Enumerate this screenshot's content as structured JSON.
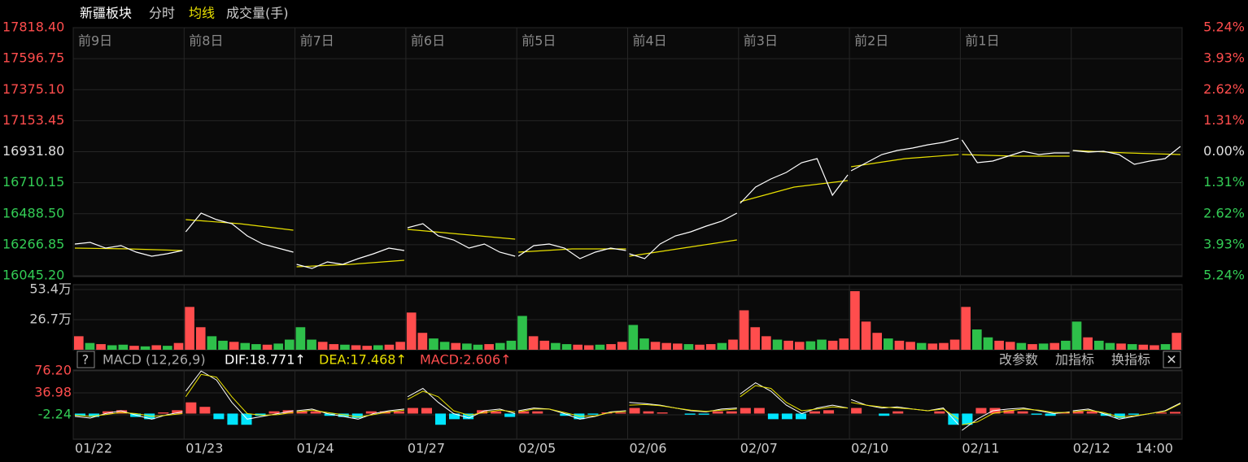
{
  "header": {
    "title": "新疆板块",
    "tabs": [
      "分时",
      "均线",
      "成交量(手)"
    ]
  },
  "price_panel": {
    "ylim": [
      16045.2,
      17818.4
    ],
    "yticks": [
      {
        "value": 17818.4,
        "label": "17818.40"
      },
      17596.75,
      {
        "value": 17375.1,
        "label": "17375.10"
      },
      17153.45,
      {
        "value": 16931.8,
        "label": "16931.80"
      },
      16710.15,
      {
        "value": 16488.5,
        "label": "16488.50"
      },
      16266.85,
      {
        "value": 16045.2,
        "label": "16045.20"
      }
    ],
    "pct_ticks": [
      "5.24%",
      "3.93%",
      "2.62%",
      "1.31%",
      "0.00%",
      "1.31%",
      "2.62%",
      "3.93%",
      "5.24%"
    ],
    "colors": {
      "price": "#ffffff",
      "avg": "#e8e000",
      "up": "#ff4d4d",
      "flat": "#e0e0e0",
      "down": "#33cc55"
    },
    "days": [
      {
        "label": "前9日",
        "price": [
          16271.9,
          16283.5,
          16243.0,
          16260.4,
          16213.8,
          16184.7,
          16202.2,
          16225.4
        ],
        "avg": [
          16242.8,
          16237.0,
          16225.4
        ]
      },
      {
        "label": "前8日",
        "price": [
          16359.1,
          16492.9,
          16446.3,
          16417.2,
          16330.0,
          16271.9,
          16242.8,
          16213.8
        ],
        "avg": [
          16446.3,
          16417.2,
          16370.7
        ]
      },
      {
        "label": "前7日",
        "price": [
          16126.6,
          16097.5,
          16144.0,
          16126.6,
          16167.3,
          16202.2,
          16242.8,
          16225.4
        ],
        "avg": [
          16109.1,
          16126.6,
          16155.6
        ]
      },
      {
        "label": "前6日",
        "price": [
          16388.2,
          16417.2,
          16330.0,
          16301.0,
          16242.8,
          16271.9,
          16213.8,
          16184.7
        ],
        "avg": [
          16376.6,
          16341.6,
          16306.8
        ]
      },
      {
        "label": "前5日",
        "price": [
          16184.7,
          16260.4,
          16271.9,
          16242.8,
          16167.3,
          16213.8,
          16242.8,
          16225.4
        ],
        "avg": [
          16213.8,
          16237.0,
          16237.0
        ]
      },
      {
        "label": "前4日",
        "price": [
          16202.2,
          16167.3,
          16271.9,
          16330.0,
          16359.1,
          16399.8,
          16434.7,
          16492.9
        ],
        "avg": [
          16184.7,
          16242.8,
          16301.0
        ]
      },
      {
        "label": "前3日",
        "price": [
          16562.6,
          16678.9,
          16737.0,
          16783.5,
          16853.3,
          16882.3,
          16620.7,
          16766.0
        ],
        "avg": [
          16574.2,
          16678.9,
          16725.3
        ]
      },
      {
        "label": "前2日",
        "price": [
          16795.1,
          16853.3,
          16911.4,
          16940.4,
          16957.9,
          16981.2,
          16998.6,
          17027.7
        ],
        "avg": [
          16824.2,
          16882.3,
          16911.4
        ]
      },
      {
        "label": "前1日",
        "price": [
          17016.1,
          16853.3,
          16864.9,
          16899.8,
          16934.7,
          16911.4,
          16923.0,
          16923.0
        ],
        "avg": [
          16911.4,
          16899.8,
          16899.8
        ]
      },
      {
        "label": null,
        "price": [
          16940.4,
          16928.8,
          16934.7,
          16911.4,
          16841.6,
          16864.9,
          16882.3,
          16969.6
        ],
        "avg": [
          16940.4,
          16923.0,
          16911.4
        ]
      }
    ]
  },
  "dates": [
    "01/22",
    "01/23",
    "01/24",
    "01/27",
    "02/05",
    "02/06",
    "02/07",
    "02/10",
    "02/11",
    "02/12"
  ],
  "time_label": "14:00",
  "volume_panel": {
    "ylim": [
      0,
      534000
    ],
    "yticks": [
      {
        "value": 534000,
        "label": "53.4万"
      },
      {
        "value": 267000,
        "label": "26.7万"
      }
    ],
    "colors": {
      "up": "#ff4d4d",
      "down": "#2ec04a"
    },
    "values": [
      [
        120000,
        60000,
        50000,
        40000,
        45000,
        35000,
        30000,
        40000,
        35000,
        60000
      ],
      [
        380000,
        200000,
        120000,
        80000,
        70000,
        60000,
        50000,
        45000,
        55000,
        90000
      ],
      [
        200000,
        90000,
        70000,
        50000,
        45000,
        40000,
        35000,
        40000,
        45000,
        70000
      ],
      [
        330000,
        150000,
        100000,
        70000,
        60000,
        55000,
        45000,
        50000,
        60000,
        80000
      ],
      [
        300000,
        120000,
        80000,
        60000,
        50000,
        45000,
        40000,
        45000,
        50000,
        70000
      ],
      [
        220000,
        100000,
        70000,
        60000,
        55000,
        50000,
        45000,
        50000,
        60000,
        90000
      ],
      [
        350000,
        200000,
        120000,
        90000,
        80000,
        70000,
        75000,
        90000,
        80000,
        100000
      ],
      [
        520000,
        250000,
        150000,
        100000,
        80000,
        70000,
        60000,
        55000,
        60000,
        90000
      ],
      [
        380000,
        180000,
        110000,
        80000,
        70000,
        60000,
        50000,
        55000,
        60000,
        80000
      ],
      [
        250000,
        110000,
        80000,
        60000,
        55000,
        50000,
        45000,
        40000,
        50000,
        150000
      ]
    ],
    "directions": [
      [
        "up",
        "down",
        "up",
        "down",
        "down",
        "up",
        "down",
        "up",
        "down",
        "up"
      ],
      [
        "up",
        "up",
        "down",
        "down",
        "up",
        "down",
        "down",
        "up",
        "down",
        "down"
      ],
      [
        "down",
        "down",
        "up",
        "up",
        "down",
        "up",
        "up",
        "down",
        "up",
        "up"
      ],
      [
        "up",
        "up",
        "down",
        "down",
        "up",
        "down",
        "down",
        "up",
        "down",
        "down"
      ],
      [
        "down",
        "up",
        "up",
        "down",
        "down",
        "up",
        "up",
        "down",
        "up",
        "up"
      ],
      [
        "down",
        "down",
        "up",
        "up",
        "up",
        "down",
        "up",
        "up",
        "down",
        "up"
      ],
      [
        "up",
        "up",
        "up",
        "down",
        "up",
        "up",
        "down",
        "down",
        "up",
        "up"
      ],
      [
        "up",
        "up",
        "up",
        "down",
        "up",
        "up",
        "down",
        "up",
        "up",
        "up"
      ],
      [
        "up",
        "down",
        "down",
        "up",
        "up",
        "down",
        "up",
        "down",
        "up",
        "down"
      ],
      [
        "down",
        "up",
        "down",
        "down",
        "up",
        "down",
        "up",
        "up",
        "down",
        "up"
      ]
    ]
  },
  "macd_panel": {
    "help": "?",
    "name": "MACD (12,26,9)",
    "dif_text": "DIF:18.771↑",
    "dea_text": "DEA:17.468↑",
    "macd_text": "MACD:2.606↑",
    "buttons": [
      "改参数",
      "加指标",
      "换指标"
    ],
    "close": "✕",
    "ylim": [
      -45.82,
      77.65
    ],
    "yticks": [
      {
        "value": 76.2,
        "label": "76.20"
      },
      36.98,
      -2.24
    ],
    "colors": {
      "dif": "#ffffff",
      "dea": "#e8e000",
      "up": "#ff4d4d",
      "down": "#00e5ff"
    },
    "dif": [
      [
        -5,
        -8,
        0,
        5,
        -3,
        -10,
        -2,
        3
      ],
      [
        40,
        76,
        60,
        20,
        -10,
        -5,
        0,
        5
      ],
      [
        5,
        8,
        0,
        -5,
        -10,
        0,
        5,
        8
      ],
      [
        30,
        45,
        20,
        0,
        -8,
        5,
        8,
        0
      ],
      [
        5,
        10,
        8,
        0,
        -10,
        -5,
        3,
        5
      ],
      [
        20,
        18,
        15,
        10,
        5,
        3,
        8,
        10
      ],
      [
        35,
        55,
        40,
        15,
        0,
        10,
        15,
        10
      ],
      [
        25,
        15,
        10,
        12,
        8,
        5,
        10,
        -20
      ],
      [
        -30,
        -10,
        5,
        8,
        10,
        5,
        0,
        3
      ],
      [
        5,
        8,
        0,
        -10,
        -5,
        0,
        5,
        18.771
      ]
    ],
    "dea": [
      [
        -3,
        -5,
        -2,
        2,
        0,
        -5,
        -3,
        0
      ],
      [
        30,
        70,
        65,
        30,
        0,
        -3,
        -2,
        2
      ],
      [
        3,
        6,
        2,
        -2,
        -6,
        -2,
        3,
        6
      ],
      [
        25,
        40,
        30,
        5,
        -3,
        2,
        6,
        3
      ],
      [
        3,
        8,
        8,
        2,
        -5,
        -4,
        2,
        4
      ],
      [
        15,
        16,
        14,
        10,
        6,
        4,
        6,
        8
      ],
      [
        30,
        50,
        45,
        20,
        5,
        8,
        12,
        10
      ],
      [
        20,
        15,
        12,
        10,
        8,
        5,
        8,
        -10
      ],
      [
        -20,
        -15,
        0,
        5,
        8,
        6,
        2,
        2
      ],
      [
        3,
        6,
        2,
        -6,
        -4,
        0,
        4,
        17.468
      ]
    ],
    "hist": [
      [
        -4,
        -6,
        4,
        6,
        -6,
        -10,
        2,
        6
      ],
      [
        20,
        12,
        -10,
        -20,
        -20,
        -4,
        4,
        6
      ],
      [
        4,
        4,
        -4,
        -6,
        -8,
        4,
        4,
        4
      ],
      [
        10,
        10,
        -20,
        -10,
        -10,
        6,
        4,
        -6
      ],
      [
        4,
        4,
        0,
        -4,
        -10,
        -2,
        2,
        2
      ],
      [
        10,
        4,
        2,
        0,
        -2,
        -2,
        4,
        4
      ],
      [
        10,
        10,
        -10,
        -10,
        -10,
        4,
        6,
        0
      ],
      [
        10,
        0,
        -4,
        4,
        0,
        0,
        4,
        -20
      ],
      [
        -20,
        10,
        10,
        6,
        4,
        -2,
        -4,
        2
      ],
      [
        4,
        4,
        -4,
        -8,
        -2,
        0,
        2,
        3
      ]
    ]
  }
}
